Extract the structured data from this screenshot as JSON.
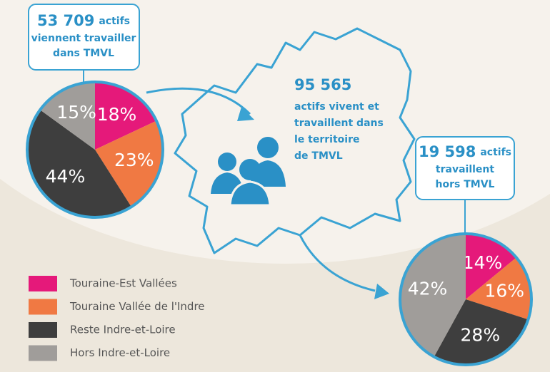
{
  "chart_data": [
    {
      "type": "pie",
      "values": [
        18,
        23,
        44,
        15
      ],
      "value_labels": [
        "18%",
        "23%",
        "44%",
        "15%"
      ],
      "callout": {
        "number": "53 709",
        "lines": [
          "actifs",
          "viennent travailler",
          "dans TMVL"
        ]
      }
    },
    {
      "type": "pie",
      "values": [
        14,
        16,
        28,
        42
      ],
      "value_labels": [
        "14%",
        "16%",
        "28%",
        "42%"
      ],
      "callout": {
        "number": "19 598",
        "lines": [
          "actifs",
          "travaillent",
          "hors TMVL"
        ]
      }
    }
  ],
  "center_text": {
    "number": "95 565",
    "lines": [
      "actifs vivent et",
      "travaillent dans",
      "le territoire",
      "de TMVL"
    ]
  },
  "legend": {
    "categories": [
      "Touraine-Est Vallées",
      "Touraine Vallée de l'Indre",
      "Reste Indre-et-Loire",
      "Hors Indre-et-Loire"
    ],
    "colors": [
      "#e5197a",
      "#f07943",
      "#3e3e3e",
      "#a09d9a"
    ]
  }
}
